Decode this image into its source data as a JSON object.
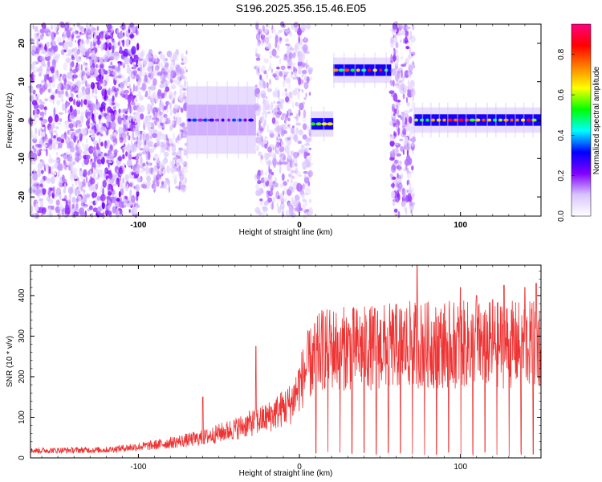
{
  "title": "S196.2025.356.15.46.E05",
  "chart_data": [
    {
      "type": "heatmap",
      "xlabel": "Height of straight line (km)",
      "ylabel": "Frequency (Hz)",
      "xlim": [
        -167,
        150
      ],
      "ylim": [
        -25,
        25
      ],
      "xticks": [
        -100,
        0,
        100
      ],
      "yticks": [
        -20,
        -10,
        0,
        10,
        20
      ],
      "colorbar": {
        "label": "Normalized spectral amplitude",
        "range": [
          0,
          0.95
        ],
        "ticks": [
          0.0,
          0.2,
          0.4,
          0.6,
          0.8
        ],
        "colormap": [
          "#ffffff",
          "#d9c4ff",
          "#8000ff",
          "#0000ff",
          "#00ffff",
          "#00ff00",
          "#ffff00",
          "#ff8000",
          "#ff0000",
          "#ff0080"
        ]
      },
      "regions": [
        {
          "x": [
            -167,
            -130
          ],
          "freq_center": 0,
          "freq_halfwidth": 25,
          "amplitude": 0.12,
          "pattern": "scattered"
        },
        {
          "x": [
            -130,
            -100
          ],
          "freq_center": 0,
          "freq_halfwidth": 25,
          "amplitude": 0.14,
          "pattern": "scattered"
        },
        {
          "x": [
            -100,
            -70
          ],
          "freq_center": 0,
          "freq_halfwidth": 18,
          "amplitude": 0.1,
          "pattern": "scattered"
        },
        {
          "x": [
            -70,
            -27
          ],
          "freq_center": 0,
          "freq_halfwidth": 4,
          "amplitude": 0.35,
          "pattern": "band"
        },
        {
          "x": [
            -27,
            7
          ],
          "freq_center": 0,
          "freq_halfwidth": 25,
          "amplitude": 0.1,
          "pattern": "scattered"
        },
        {
          "x": [
            7,
            21
          ],
          "freq_center": -1,
          "freq_halfwidth": 1.5,
          "amplitude": 0.9,
          "pattern": "band"
        },
        {
          "x": [
            21,
            57
          ],
          "freq_center": 13,
          "freq_halfwidth": 1.5,
          "amplitude": 0.9,
          "pattern": "band"
        },
        {
          "x": [
            57,
            71
          ],
          "freq_center": 0,
          "freq_halfwidth": 25,
          "amplitude": 0.12,
          "pattern": "scattered"
        },
        {
          "x": [
            71,
            150
          ],
          "freq_center": 0,
          "freq_halfwidth": 1.5,
          "amplitude": 0.9,
          "pattern": "band"
        }
      ]
    },
    {
      "type": "line",
      "xlabel": "Height of straight line (km)",
      "ylabel": "SNR (10 * v/v)",
      "xlim": [
        -167,
        150
      ],
      "ylim": [
        0,
        475
      ],
      "xticks": [
        -100,
        0,
        100
      ],
      "yticks": [
        0,
        100,
        200,
        300,
        400
      ],
      "series": [
        {
          "color": "#ee3333",
          "envelope": [
            {
              "x": -167,
              "y": 20
            },
            {
              "x": -120,
              "y": 22
            },
            {
              "x": -90,
              "y": 35
            },
            {
              "x": -60,
              "y": 55
            },
            {
              "x": -40,
              "y": 80
            },
            {
              "x": -20,
              "y": 110
            },
            {
              "x": -5,
              "y": 150
            },
            {
              "x": 5,
              "y": 250
            },
            {
              "x": 15,
              "y": 300
            },
            {
              "x": 40,
              "y": 300
            },
            {
              "x": 70,
              "y": 310
            },
            {
              "x": 100,
              "y": 310
            },
            {
              "x": 150,
              "y": 310
            }
          ],
          "peaks": [
            {
              "x": -27,
              "y": 275
            },
            {
              "x": -60,
              "y": 150
            },
            {
              "x": 73,
              "y": 475
            },
            {
              "x": 100,
              "y": 420
            },
            {
              "x": 110,
              "y": 400
            },
            {
              "x": 120,
              "y": 390
            },
            {
              "x": 127,
              "y": 425
            },
            {
              "x": 140,
              "y": 420
            },
            {
              "x": 147,
              "y": 430
            }
          ],
          "dropout_min": 5
        }
      ]
    }
  ]
}
